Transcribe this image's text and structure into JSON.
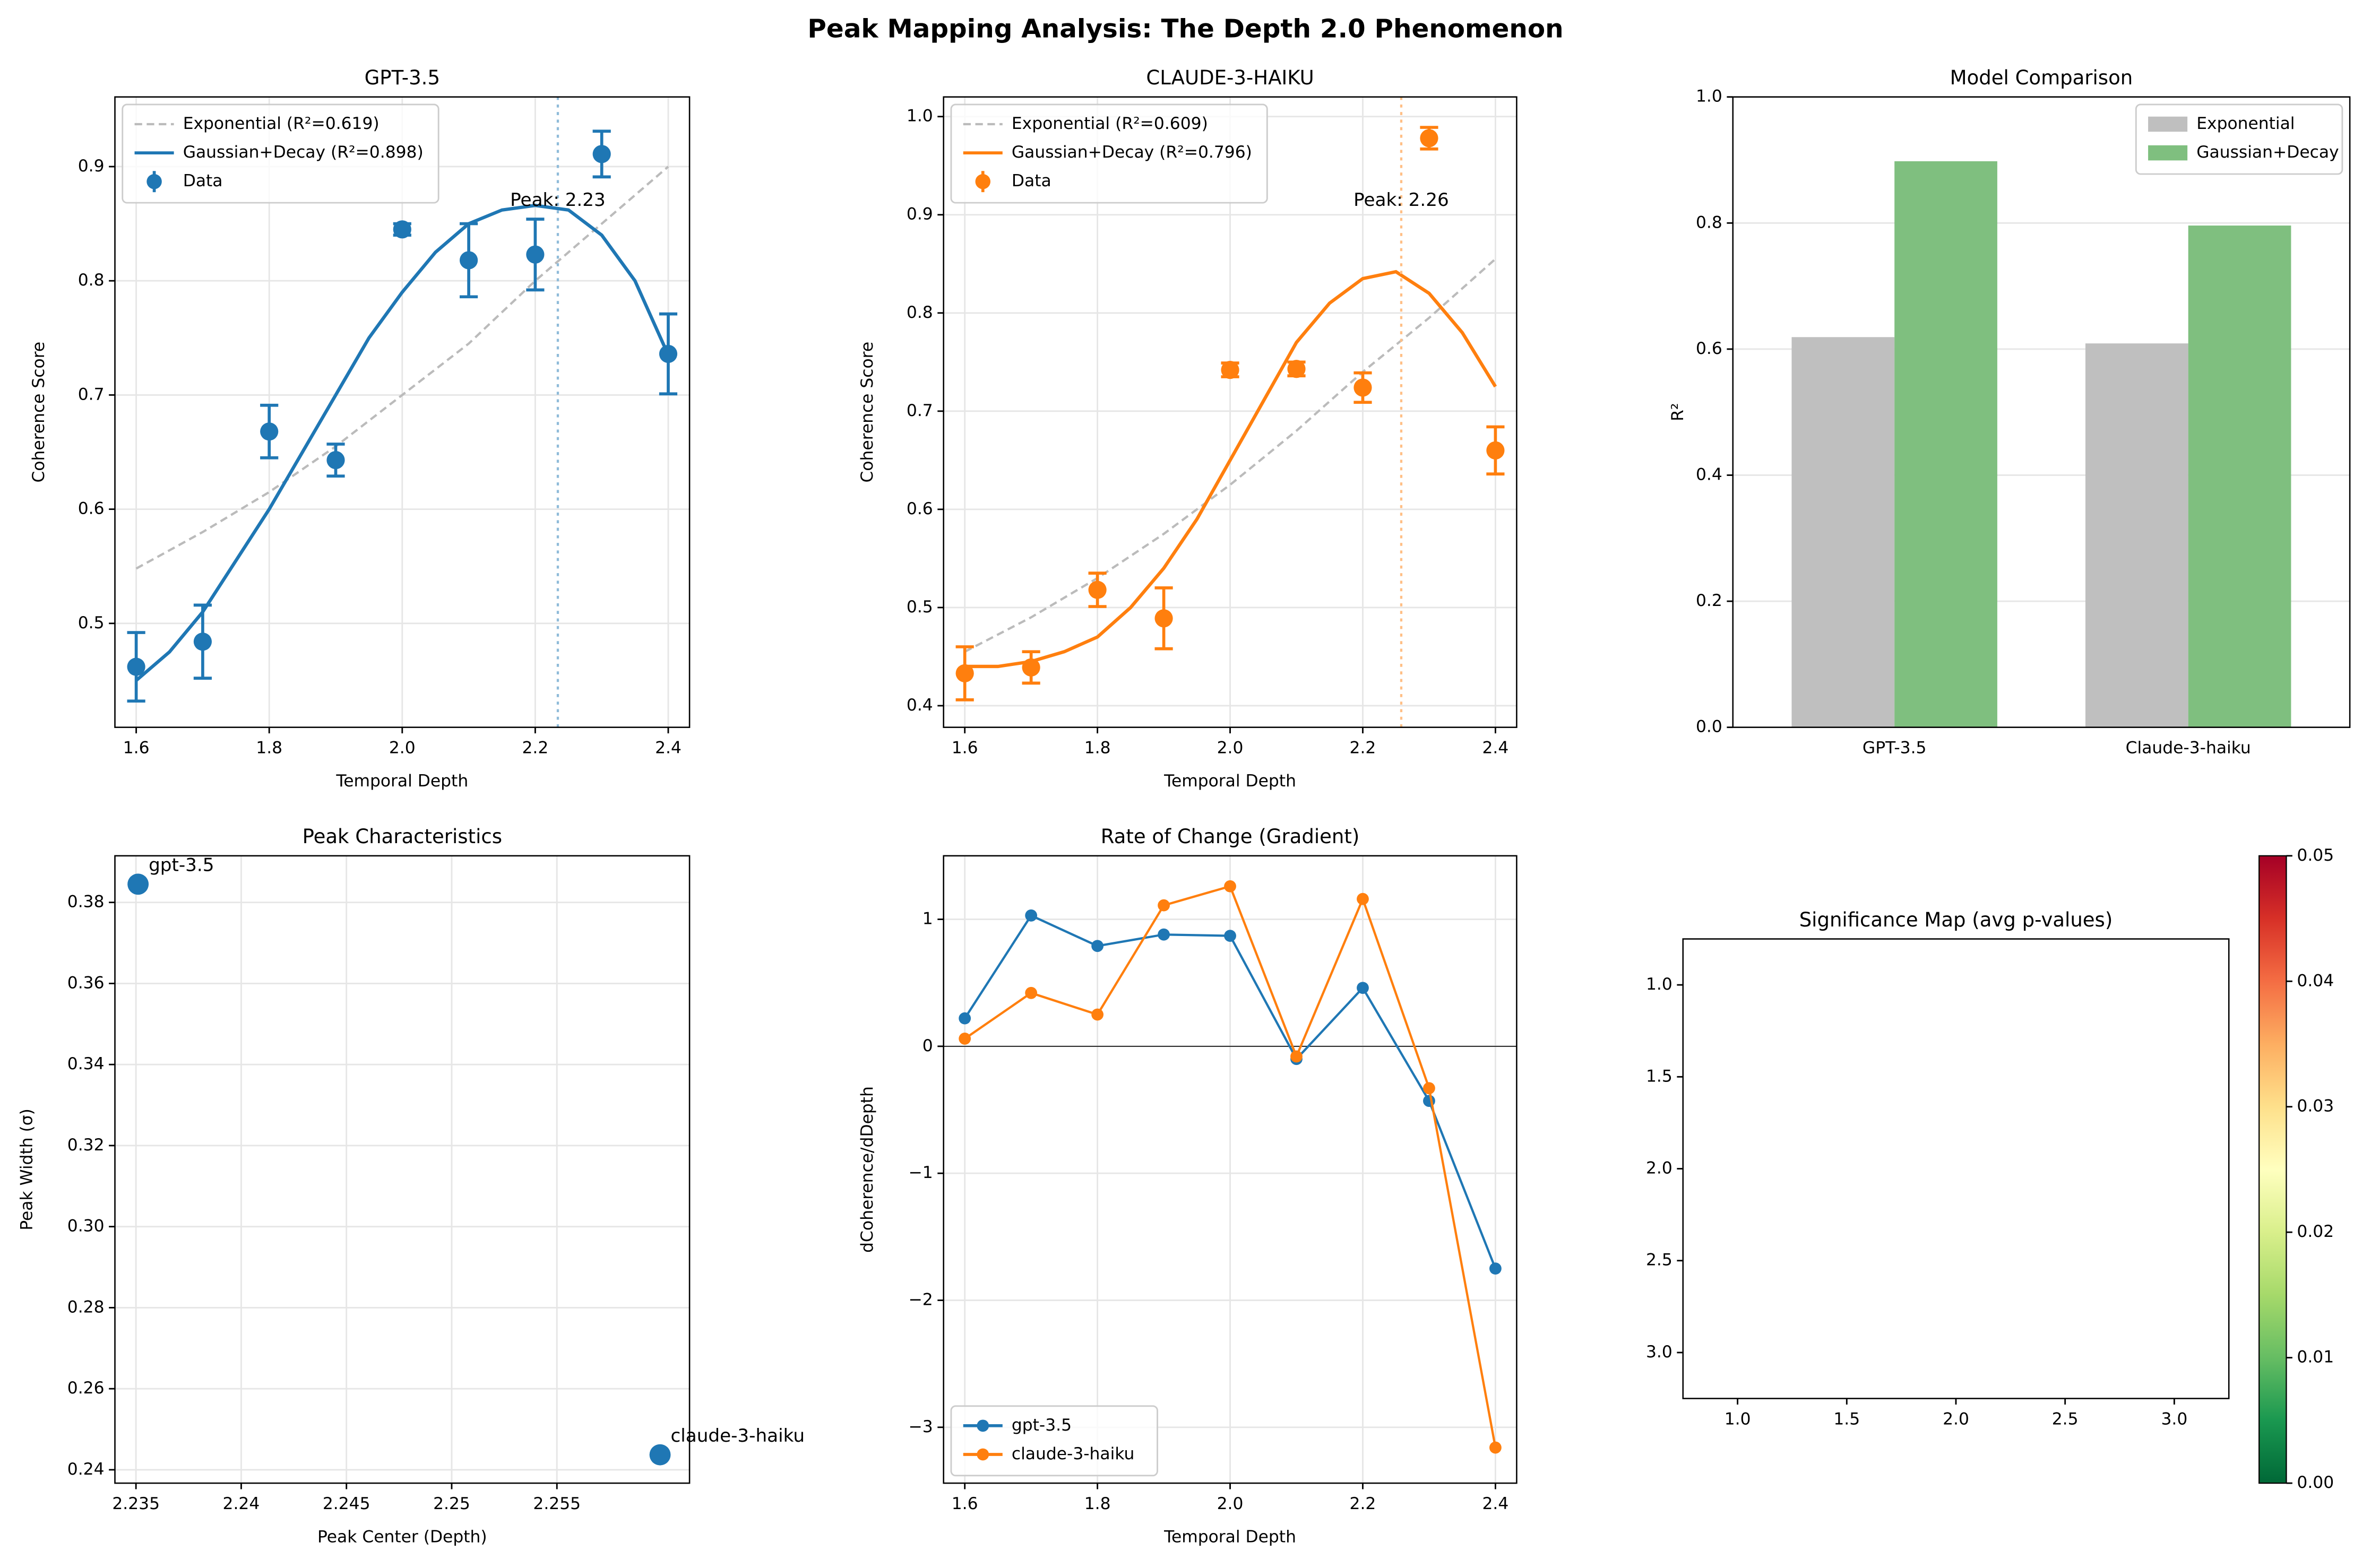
{
  "title": "Peak Mapping Analysis: The Depth 2.0 Phenomenon",
  "chart_data": [
    {
      "type": "errorbar",
      "title": "GPT-3.5",
      "x_label": "Temporal Depth",
      "y_label": "Coherence Score",
      "xlim": [
        1.568,
        2.432
      ],
      "ylim": [
        0.409,
        0.961
      ],
      "xticks": [
        1.6,
        1.8,
        {
          "value": 2,
          "label": "2.0"
        },
        2.2,
        2.4
      ],
      "yticks": [
        0.5,
        0.6,
        0.7,
        0.8,
        0.9
      ],
      "grid": true,
      "legend": "upper left",
      "series": [
        {
          "name": "Exponential (R²=0.619)",
          "color": "#bbbbbb",
          "style": "dashed",
          "x": [
            1.6,
            1.7,
            1.8,
            1.9,
            2.0,
            2.1,
            2.2,
            2.3,
            2.4
          ],
          "values": [
            0.548,
            0.58,
            0.615,
            0.655,
            0.7,
            0.745,
            0.8,
            0.85,
            0.9
          ]
        },
        {
          "name": "Gaussian+Decay (R²=0.898)",
          "color": "#1f77b4",
          "style": "solid",
          "x": [
            1.6,
            1.65,
            1.7,
            1.75,
            1.8,
            1.85,
            1.9,
            1.95,
            2.0,
            2.05,
            2.1,
            2.15,
            2.2,
            2.25,
            2.3,
            2.35,
            2.4
          ],
          "values": [
            0.45,
            0.475,
            0.51,
            0.555,
            0.6,
            0.65,
            0.7,
            0.75,
            0.79,
            0.825,
            0.85,
            0.862,
            0.866,
            0.862,
            0.84,
            0.8,
            0.735
          ]
        },
        {
          "name": "Data",
          "color": "#1f77b4",
          "style": "errorbar",
          "x": [
            1.6,
            1.7,
            1.8,
            1.9,
            2.0,
            2.1,
            2.2,
            2.3,
            2.4
          ],
          "values": [
            0.462,
            0.484,
            0.668,
            0.643,
            0.845,
            0.818,
            0.823,
            0.911,
            0.736
          ],
          "errors": [
            0.03,
            0.032,
            0.023,
            0.014,
            0.005,
            0.032,
            0.031,
            0.02,
            0.035
          ]
        }
      ],
      "peak": {
        "value": 2.234,
        "label": "Peak: 2.23",
        "color": "#8fbbd9"
      }
    },
    {
      "type": "errorbar",
      "title": "CLAUDE-3-HAIKU",
      "x_label": "Temporal Depth",
      "y_label": "Coherence Score",
      "xlim": [
        1.568,
        2.432
      ],
      "ylim": [
        0.378,
        1.02
      ],
      "xticks": [
        1.6,
        1.8,
        {
          "value": 2,
          "label": "2.0"
        },
        2.2,
        2.4
      ],
      "yticks": [
        0.4,
        0.5,
        0.6,
        0.7,
        0.8,
        0.9,
        {
          "value": 1,
          "label": "1.0"
        }
      ],
      "grid": true,
      "legend": "upper left",
      "series": [
        {
          "name": "Exponential (R²=0.609)",
          "color": "#bbbbbb",
          "style": "dashed",
          "x": [
            1.6,
            1.7,
            1.8,
            1.9,
            2.0,
            2.1,
            2.2,
            2.3,
            2.4
          ],
          "values": [
            0.455,
            0.49,
            0.53,
            0.575,
            0.625,
            0.68,
            0.74,
            0.795,
            0.855
          ]
        },
        {
          "name": "Gaussian+Decay (R²=0.796)",
          "color": "#ff7f0e",
          "style": "solid",
          "x": [
            1.6,
            1.65,
            1.7,
            1.75,
            1.8,
            1.85,
            1.9,
            1.95,
            2.0,
            2.05,
            2.1,
            2.15,
            2.2,
            2.25,
            2.3,
            2.35,
            2.4
          ],
          "values": [
            0.44,
            0.44,
            0.445,
            0.455,
            0.47,
            0.5,
            0.54,
            0.59,
            0.65,
            0.71,
            0.77,
            0.81,
            0.835,
            0.842,
            0.82,
            0.78,
            0.725
          ]
        },
        {
          "name": "Data",
          "color": "#ff7f0e",
          "style": "errorbar",
          "x": [
            1.6,
            1.7,
            1.8,
            1.9,
            2.0,
            2.1,
            2.2,
            2.3,
            2.4
          ],
          "values": [
            0.433,
            0.439,
            0.518,
            0.489,
            0.742,
            0.743,
            0.724,
            0.978,
            0.66
          ],
          "errors": [
            0.027,
            0.016,
            0.017,
            0.031,
            0.007,
            0.007,
            0.015,
            0.011,
            0.024
          ]
        }
      ],
      "peak": {
        "value": 2.258,
        "label": "Peak: 2.26",
        "color": "#ffbf86"
      }
    },
    {
      "type": "bar",
      "title": "Model Comparison",
      "y_label": "R²",
      "categories": [
        "GPT-3.5",
        "Claude-3-haiku"
      ],
      "ylim": [
        0,
        1
      ],
      "yticks": [
        {
          "value": 0,
          "label": "0.0"
        },
        0.2,
        0.4,
        0.6,
        0.8,
        {
          "value": 1,
          "label": "1.0"
        }
      ],
      "grid": true,
      "legend": "upper right",
      "series": [
        {
          "name": "Exponential",
          "color": "#bfbfbf",
          "values": [
            0.619,
            0.609
          ]
        },
        {
          "name": "Gaussian+Decay",
          "color": "#7fbf7f",
          "values": [
            0.898,
            0.796
          ]
        }
      ]
    },
    {
      "type": "scatter",
      "title": "Peak Characteristics",
      "x_label": "Peak Center (Depth)",
      "y_label": "Peak Width (σ)",
      "xlim": [
        2.234,
        2.2613
      ],
      "ylim": [
        0.2367,
        0.3915
      ],
      "xticks": [
        2.235,
        2.24,
        2.245,
        2.25,
        2.255
      ],
      "yticks": [
        0.24,
        0.26,
        0.28,
        {
          "value": 0.3,
          "label": "0.30"
        },
        0.32,
        0.34,
        0.36,
        0.38
      ],
      "grid": true,
      "color": "#1f77b4",
      "labels": [
        "gpt-3.5",
        "claude-3-haiku"
      ],
      "x": [
        2.2351,
        2.2599
      ],
      "values": [
        0.3845,
        0.2437
      ]
    },
    {
      "type": "line",
      "title": "Rate of Change (Gradient)",
      "x_label": "Temporal Depth",
      "y_label": "dCoherence/dDepth",
      "xlim": [
        1.568,
        2.432
      ],
      "ylim": [
        -3.44,
        1.5
      ],
      "xticks": [
        1.6,
        1.8,
        {
          "value": 2,
          "label": "2.0"
        },
        2.2,
        2.4
      ],
      "yticks": [
        {
          "value": -3,
          "label": "−3"
        },
        {
          "value": -2,
          "label": "−2"
        },
        {
          "value": -1,
          "label": "−1"
        },
        0,
        1
      ],
      "grid": true,
      "legend": "lower left",
      "reference_line": 0,
      "x": [
        1.6,
        1.7,
        1.8,
        1.9,
        2.0,
        2.1,
        2.2,
        2.3,
        2.4
      ],
      "series": [
        {
          "name": "gpt-3.5",
          "color": "#1f77b4",
          "values": [
            0.22,
            1.03,
            0.79,
            0.88,
            0.87,
            -0.1,
            0.46,
            -0.43,
            -1.75
          ]
        },
        {
          "name": "claude-3-haiku",
          "color": "#ff7f0e",
          "values": [
            0.06,
            0.42,
            0.25,
            1.11,
            1.26,
            -0.08,
            1.16,
            -0.33,
            -3.16
          ]
        }
      ]
    },
    {
      "type": "heatmap",
      "title": "Significance Map (avg p-values)",
      "xlim": [
        0.75,
        3.25
      ],
      "ylim": [
        3.25,
        0.75
      ],
      "xticks": [
        {
          "value": 1,
          "label": "1.0"
        },
        1.5,
        {
          "value": 2,
          "label": "2.0"
        },
        2.5,
        {
          "value": 3,
          "label": "3.0"
        }
      ],
      "yticks": [
        {
          "value": 1,
          "label": "1.0"
        },
        1.5,
        {
          "value": 2,
          "label": "2.0"
        },
        2.5,
        {
          "value": 3,
          "label": "3.0"
        }
      ],
      "colorbar": {
        "lim": [
          0,
          0.05
        ],
        "ticks": [
          {
            "value": 0,
            "label": "0.00"
          },
          {
            "value": 0.01,
            "label": "0.01"
          },
          {
            "value": 0.02,
            "label": "0.02"
          },
          {
            "value": 0.03,
            "label": "0.03"
          },
          {
            "value": 0.04,
            "label": "0.04"
          },
          {
            "value": 0.05,
            "label": "0.05"
          }
        ],
        "colors": [
          "#006837",
          "#1a9850",
          "#66bd63",
          "#a6d96a",
          "#d9ef8b",
          "#ffffbf",
          "#fee08b",
          "#fdae61",
          "#f46d43",
          "#d73027",
          "#a50026"
        ]
      }
    }
  ]
}
